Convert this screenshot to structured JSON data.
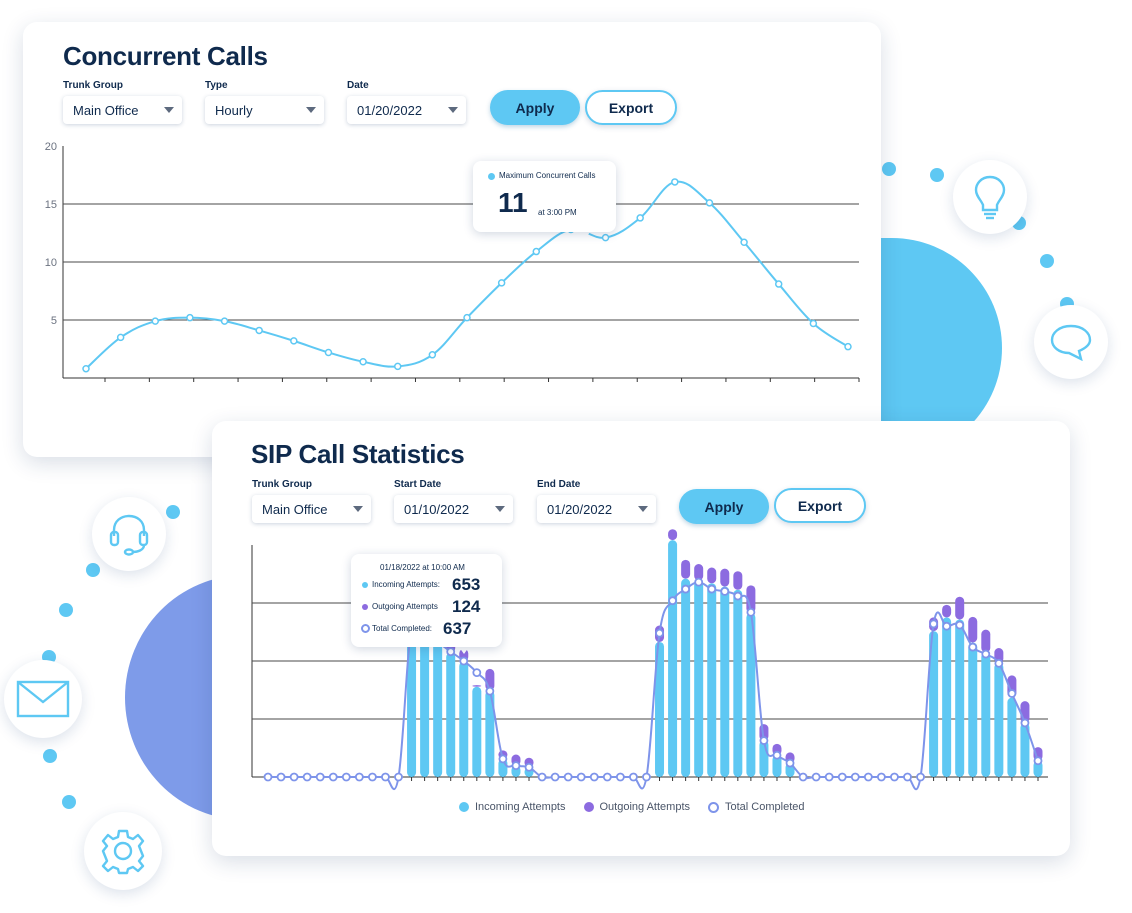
{
  "colors": {
    "navy": "#0f2a4d",
    "light_blue": "#5ec8f3",
    "purple": "#8c6be0",
    "periwinkle": "#7e94ea",
    "grid": "#4a4a4a"
  },
  "decorations": {
    "icons": [
      "lightbulb-icon",
      "chat-bubble-icon",
      "headset-icon",
      "envelope-icon",
      "gear-icon"
    ]
  },
  "concurrent_calls": {
    "title": "Concurrent Calls",
    "filters": {
      "trunk_group": {
        "label": "Trunk Group",
        "value": "Main Office"
      },
      "type": {
        "label": "Type",
        "value": "Hourly"
      },
      "date": {
        "label": "Date",
        "value": "01/20/2022"
      }
    },
    "apply_label": "Apply",
    "export_label": "Export",
    "tooltip": {
      "series": "Maximum Concurrent Calls",
      "value": "11",
      "time": "at 3:00 PM"
    }
  },
  "sip_stats": {
    "title": "SIP Call Statistics",
    "filters": {
      "trunk_group": {
        "label": "Trunk Group",
        "value": "Main Office"
      },
      "start_date": {
        "label": "Start Date",
        "value": "01/10/2022"
      },
      "end_date": {
        "label": "End Date",
        "value": "01/20/2022"
      }
    },
    "apply_label": "Apply",
    "export_label": "Export",
    "tooltip": {
      "header": "01/18/2022 at 10:00 AM",
      "incoming_label": "Incoming Attempts:",
      "incoming_value": "653",
      "outgoing_label": "Outgoing Attempts",
      "outgoing_value": "124",
      "completed_label": "Total Completed:",
      "completed_value": "637"
    },
    "legend": {
      "incoming": "Incoming Attempts",
      "outgoing": "Outgoing Attempts",
      "completed": "Total Completed"
    }
  },
  "chart_data": [
    {
      "type": "line",
      "title": "Concurrent Calls",
      "xlabel": "",
      "ylabel": "",
      "ylim": [
        0,
        20
      ],
      "yticks": [
        5,
        10,
        15,
        20
      ],
      "grid": true,
      "series": [
        {
          "name": "Maximum Concurrent Calls",
          "values": [
            0.8,
            3.5,
            4.9,
            5.2,
            4.9,
            4.1,
            3.2,
            2.2,
            1.4,
            1.0,
            2.0,
            5.2,
            8.2,
            10.9,
            12.8,
            12.1,
            13.8,
            16.9,
            15.1,
            11.7,
            8.1,
            4.7,
            2.7
          ]
        }
      ]
    },
    {
      "type": "bar",
      "title": "SIP Call Statistics",
      "ylim": [
        0,
        1000
      ],
      "grid": true,
      "legend_position": "bottom",
      "categories_count": 60,
      "series": [
        {
          "name": "Incoming Attempts",
          "values": [
            0,
            0,
            0,
            0,
            0,
            0,
            0,
            0,
            0,
            0,
            0,
            684,
            638,
            581,
            536,
            498,
            389,
            373,
            78,
            49,
            42,
            0,
            0,
            0,
            0,
            0,
            0,
            0,
            0,
            0,
            582,
            1021,
            855,
            847,
            835,
            821,
            807,
            707,
            157,
            94,
            60,
            0,
            0,
            0,
            0,
            0,
            0,
            0,
            0,
            0,
            0,
            629,
            688,
            679,
            580,
            537,
            491,
            342,
            233,
            70
          ]
        },
        {
          "name": "Outgoing Attempts",
          "values": [
            0,
            0,
            0,
            0,
            0,
            0,
            0,
            0,
            0,
            0,
            0,
            39,
            49,
            63,
            55,
            54,
            7,
            93,
            37,
            48,
            41,
            0,
            0,
            0,
            0,
            0,
            0,
            0,
            0,
            0,
            71,
            47,
            81,
            71,
            68,
            77,
            80,
            119,
            71,
            49,
            46,
            0,
            0,
            0,
            0,
            0,
            0,
            0,
            0,
            0,
            0,
            59,
            54,
            98,
            110,
            98,
            65,
            96,
            94,
            59
          ]
        },
        {
          "name": "Total Completed",
          "values": [
            0,
            0,
            0,
            0,
            0,
            0,
            0,
            0,
            0,
            0,
            0,
            653,
            600,
            580,
            540,
            500,
            450,
            370,
            78,
            49,
            42,
            0,
            0,
            0,
            0,
            0,
            0,
            0,
            0,
            0,
            620,
            760,
            810,
            840,
            810,
            800,
            780,
            710,
            157,
            94,
            60,
            0,
            0,
            0,
            0,
            0,
            0,
            0,
            0,
            0,
            0,
            660,
            650,
            655,
            560,
            530,
            490,
            360,
            233,
            70
          ]
        }
      ]
    }
  ]
}
